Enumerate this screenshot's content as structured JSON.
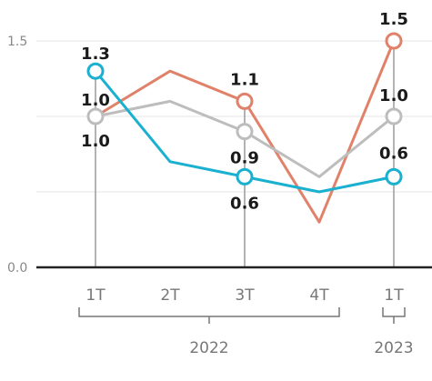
{
  "chart_data": {
    "type": "line",
    "title": "",
    "xlabel": "",
    "ylabel": "",
    "x": [
      "1T",
      "2T",
      "3T",
      "4T",
      "1T"
    ],
    "ylim": [
      0,
      1.5
    ],
    "yticks": [
      "0.0",
      "1.5"
    ],
    "year_groups": [
      {
        "label": "2022",
        "from": 0,
        "to": 3
      },
      {
        "label": "2023",
        "from": 4,
        "to": 4
      }
    ],
    "grid": true,
    "series": [
      {
        "color": "#e0826a",
        "values": [
          1.0,
          1.3,
          1.1,
          0.3,
          1.5
        ],
        "labels": [
          null,
          null,
          "1.1",
          null,
          "1.5"
        ]
      },
      {
        "color": "#bdbdbd",
        "values": [
          1.0,
          1.1,
          0.9,
          0.6,
          1.0
        ],
        "labels": [
          "1.0",
          null,
          "0.9",
          null,
          "1.0"
        ]
      },
      {
        "color": "#1ab0d0",
        "values": [
          1.3,
          0.7,
          0.6,
          0.5,
          0.6
        ],
        "labels": [
          "1.3",
          null,
          "0.6",
          null,
          "0.6"
        ]
      }
    ],
    "extra_labels": [
      {
        "text": "1.0",
        "index": 0
      }
    ]
  }
}
